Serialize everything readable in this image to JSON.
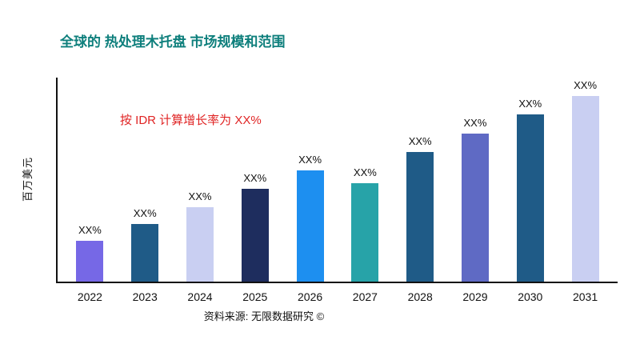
{
  "title": "全球的 热处理木托盘 市场规模和范围",
  "annotation": "按 IDR 计算增长率为 XX%",
  "y_axis_label": "百万美元",
  "source": "资料来源: 无限数据研究 ©",
  "colors": {
    "title": "#0e7f7c",
    "annotation": "#e02424",
    "axis": "#111111"
  },
  "chart_data": {
    "type": "bar",
    "title": "全球的 热处理木托盘 市场规模和范围",
    "xlabel": "",
    "ylabel": "百万美元",
    "ylim": [
      0,
      110
    ],
    "grid": false,
    "legend": false,
    "categories": [
      "2022",
      "2023",
      "2024",
      "2025",
      "2026",
      "2027",
      "2028",
      "2029",
      "2030",
      "2031"
    ],
    "values": [
      22,
      31,
      40,
      50,
      60,
      53,
      70,
      80,
      90,
      100
    ],
    "bar_labels": [
      "XX%",
      "XX%",
      "XX%",
      "XX%",
      "XX%",
      "XX%",
      "XX%",
      "XX%",
      "XX%",
      "XX%"
    ],
    "bar_colors": [
      "#7668e6",
      "#1f5b87",
      "#c9cff2",
      "#1e2d5e",
      "#1d8ff0",
      "#27a3a8",
      "#1f5b87",
      "#5f6ac4",
      "#1f5b87",
      "#c9cff2"
    ],
    "annotation": "按 IDR 计算增长率为 XX%"
  }
}
